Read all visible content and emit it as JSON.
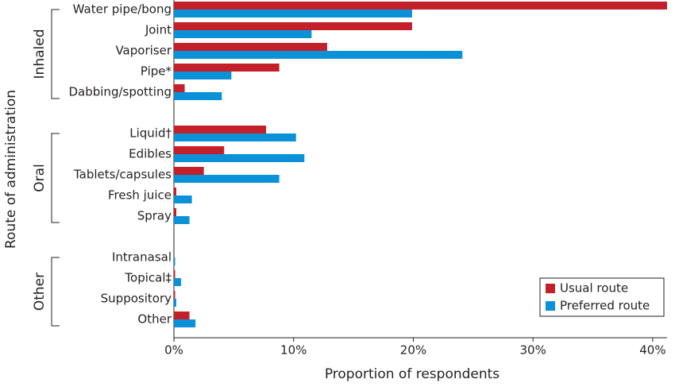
{
  "chart_data": {
    "type": "bar",
    "orientation": "horizontal",
    "categories": [
      "Water pipe/bong",
      "Joint",
      "Vaporiser",
      "Pipe*",
      "Dabbing/spotting",
      null,
      "Liquid†",
      "Edibles",
      "Tablets/capsules",
      "Fresh juice",
      "Spray",
      null,
      "Intranasal",
      "Topical‡",
      "Suppository",
      "Other"
    ],
    "groups": [
      {
        "name": "Inhaled",
        "range": [
          0,
          4
        ]
      },
      {
        "name": "Oral",
        "range": [
          6,
          10
        ]
      },
      {
        "name": "Other",
        "range": [
          12,
          15
        ]
      }
    ],
    "series": [
      {
        "name": "Usual route",
        "color": "#c4202a",
        "values": [
          41.2,
          19.9,
          12.8,
          8.8,
          0.9,
          null,
          7.7,
          4.2,
          2.5,
          0.2,
          0.2,
          null,
          0,
          0.1,
          0.1,
          1.3
        ]
      },
      {
        "name": "Preferred route",
        "color": "#0a91d8",
        "values": [
          19.9,
          11.5,
          24.1,
          4.8,
          4.0,
          null,
          10.2,
          10.9,
          8.8,
          1.5,
          1.3,
          null,
          0.1,
          0.6,
          0.2,
          1.8
        ]
      }
    ],
    "xlim": [
      0,
      41.2
    ],
    "xticks": [
      {
        "value": 0,
        "label": "0%"
      },
      {
        "value": 10,
        "label": "10%"
      },
      {
        "value": 20,
        "label": "20%"
      },
      {
        "value": 30,
        "label": "30%"
      },
      {
        "value": 40,
        "label": "40%"
      }
    ],
    "xlabel": "Proportion of respondents",
    "ylabel": "Route of administration",
    "legend": "lower right"
  }
}
